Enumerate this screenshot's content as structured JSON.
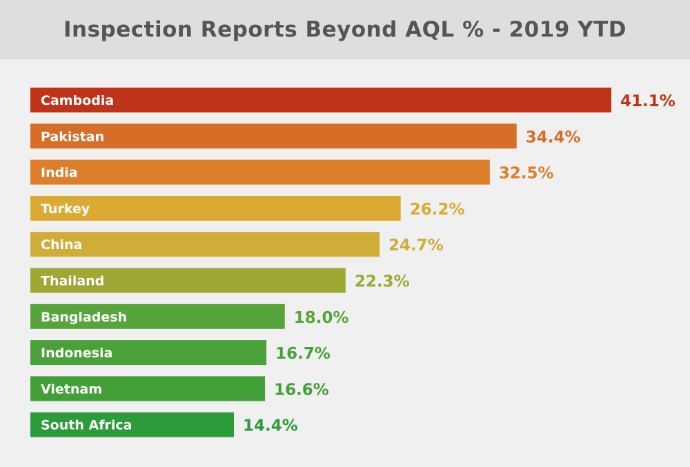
{
  "title": "Inspection Reports Beyond AQL % - 2019 YTD",
  "chart_data": {
    "type": "bar",
    "orientation": "horizontal",
    "title": "Inspection Reports Beyond AQL % - 2019 YTD",
    "xlabel": "",
    "ylabel": "",
    "grid": false,
    "legend": "none",
    "categories": [
      "Cambodia",
      "Pakistan",
      "India",
      "Turkey",
      "China",
      "Thailand",
      "Bangladesh",
      "Indonesia",
      "Vietnam",
      "South Africa"
    ],
    "values": [
      41.1,
      34.4,
      32.5,
      26.2,
      24.7,
      22.3,
      18.0,
      16.7,
      16.6,
      14.4
    ],
    "value_labels": [
      "41.1%",
      "34.4%",
      "32.5%",
      "26.2%",
      "24.7%",
      "22.3%",
      "18.0%",
      "16.7%",
      "16.6%",
      "14.4%"
    ],
    "colors": [
      "#bf3319",
      "#d76e28",
      "#dd7e2b",
      "#dbaa33",
      "#cfad38",
      "#9fa735",
      "#57a43b",
      "#4aa13a",
      "#43a039",
      "#2c9b3a"
    ],
    "xlim": [
      0,
      41.1
    ]
  }
}
